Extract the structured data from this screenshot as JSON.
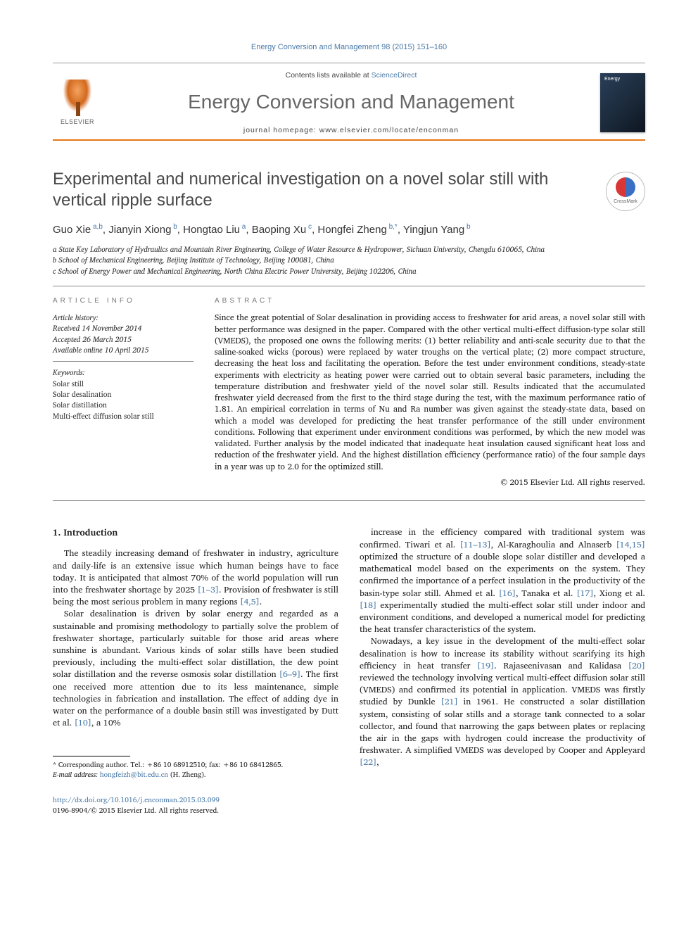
{
  "citation": "Energy Conversion and Management 98 (2015) 151–160",
  "masthead": {
    "contents_prefix": "Contents lists available at ",
    "contents_link": "ScienceDirect",
    "journal_name": "Energy Conversion and Management",
    "homepage": "journal homepage: www.elsevier.com/locate/enconman",
    "publisher": "ELSEVIER",
    "cover_text": "Energy"
  },
  "crossmark_label": "CrossMark",
  "title": "Experimental and numerical investigation on a novel solar still with vertical ripple surface",
  "authors_html": "Guo Xie<sup> a,b</sup>, Jianyin Xiong<sup> b</sup>, Hongtao Liu<sup> a</sup>, Baoping Xu<sup> c</sup>, Hongfei Zheng<sup> b,*</sup>, Yingjun Yang<sup> b</sup>",
  "affiliations": {
    "a": "a State Key Laboratory of Hydraulics and Mountain River Engineering, College of Water Resource & Hydropower, Sichuan University, Chengdu 610065, China",
    "b": "b School of Mechanical Engineering, Beijing Institute of Technology, Beijing 100081, China",
    "c": "c School of Energy Power and Mechanical Engineering, North China Electric Power University, Beijing 102206, China"
  },
  "info": {
    "heading": "ARTICLE INFO",
    "history_head": "Article history:",
    "received": "Received 14 November 2014",
    "accepted": "Accepted 26 March 2015",
    "online": "Available online 10 April 2015",
    "keywords_head": "Keywords:",
    "keywords": [
      "Solar still",
      "Solar desalination",
      "Solar distillation",
      "Multi-effect diffusion solar still"
    ]
  },
  "abstract": {
    "heading": "ABSTRACT",
    "body": "Since the great potential of Solar desalination in providing access to freshwater for arid areas, a novel solar still with better performance was designed in the paper. Compared with the other vertical multi-effect diffusion-type solar still (VMEDS), the proposed one owns the following merits: (1) better reliability and anti-scale security due to that the saline-soaked wicks (porous) were replaced by water troughs on the vertical plate; (2) more compact structure, decreasing the heat loss and facilitating the operation. Before the test under environment conditions, steady-state experiments with electricity as heating power were carried out to obtain several basic parameters, including the temperature distribution and freshwater yield of the novel solar still. Results indicated that the accumulated freshwater yield decreased from the first to the third stage during the test, with the maximum performance ratio of 1.81. An empirical correlation in terms of Nu and Ra number was given against the steady-state data, based on which a model was developed for predicting the heat transfer performance of the still under environment conditions. Following that experiment under environment conditions was performed, by which the new model was validated. Further analysis by the model indicated that inadequate heat insulation caused significant heat loss and reduction of the freshwater yield. And the highest distillation efficiency (performance ratio) of the four sample days in a year was up to 2.0 for the optimized still.",
    "copyright": "© 2015 Elsevier Ltd. All rights reserved."
  },
  "body": {
    "section_heading": "1. Introduction",
    "left_p1": "The steadily increasing demand of freshwater in industry, agriculture and daily-life is an extensive issue which human beings have to face today. It is anticipated that almost 70% of the world population will run into the freshwater shortage by 2025 [1–3]. Provision of freshwater is still being the most serious problem in many regions [4,5].",
    "left_p2": "Solar desalination is driven by solar energy and regarded as a sustainable and promising methodology to partially solve the problem of freshwater shortage, particularly suitable for those arid areas where sunshine is abundant. Various kinds of solar stills have been studied previously, including the multi-effect solar distillation, the dew point solar distillation and the reverse osmosis solar distillation [6–9]. The first one received more attention due to its less maintenance, simple technologies in fabrication and installation. The effect of adding dye in water on the performance of a double basin still was investigated by Dutt et al. [10], a 10%",
    "right_p1": "increase in the efficiency compared with traditional system was confirmed. Tiwari et al. [11–13], Al-Karaghoulia and Alnaserb [14,15] optimized the structure of a double slope solar distiller and developed a mathematical model based on the experiments on the system. They confirmed the importance of a perfect insulation in the productivity of the basin-type solar still. Ahmed et al. [16], Tanaka et al. [17], Xiong et al. [18] experimentally studied the multi-effect solar still under indoor and environment conditions, and developed a numerical model for predicting the heat transfer characteristics of the system.",
    "right_p2": "Nowadays, a key issue in the development of the multi-effect solar desalination is how to increase its stability without scarifying its high efficiency in heat transfer [19]. Rajaseenivasan and Kalidasa [20] reviewed the technology involving vertical multi-effect diffusion solar still (VMEDS) and confirmed its potential in application. VMEDS was firstly studied by Dunkle [21] in 1961. He constructed a solar distillation system, consisting of solar stills and a storage tank connected to a solar collector, and found that narrowing the gaps between plates or replacing the air in the gaps with hydrogen could increase the productivity of freshwater. A simplified VMEDS was developed by Cooper and Appleyard [22],"
  },
  "footnotes": {
    "corr": "* Corresponding author. Tel.: +86 10 68912510; fax: +86 10 68412865.",
    "email_label": "E-mail address: ",
    "email": "hongfeizh@bit.edu.cn",
    "email_suffix": " (H. Zheng)."
  },
  "doi": {
    "url": "http://dx.doi.org/10.1016/j.enconman.2015.03.099",
    "issn_line": "0196-8904/© 2015 Elsevier Ltd. All rights reserved."
  },
  "colors": {
    "link": "#4a7aa8",
    "accent": "#e67615",
    "heading_gray": "#666",
    "text": "#222"
  }
}
